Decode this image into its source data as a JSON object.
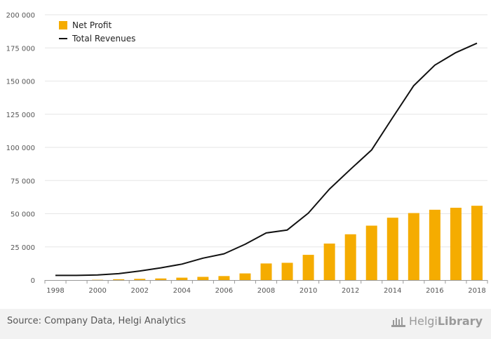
{
  "chart_data": {
    "type": "bar+line",
    "x": [
      1998,
      1999,
      2000,
      2001,
      2002,
      2003,
      2004,
      2005,
      2006,
      2007,
      2008,
      2009,
      2010,
      2011,
      2012,
      2013,
      2014,
      2015,
      2016,
      2017,
      2018
    ],
    "x_tick_labels": [
      "1998",
      "2000",
      "2002",
      "2004",
      "2006",
      "2008",
      "2010",
      "2012",
      "2014",
      "2016",
      "2018"
    ],
    "series": [
      {
        "name": "Net Profit",
        "kind": "bar",
        "color": "#f5ac00",
        "values": [
          0,
          0,
          200,
          600,
          900,
          1200,
          1800,
          2400,
          3000,
          5000,
          12500,
          13000,
          19000,
          27500,
          34500,
          41000,
          47000,
          50500,
          53000,
          54500,
          56000
        ]
      },
      {
        "name": "Total Revenues",
        "kind": "line",
        "color": "#111111",
        "values": [
          3500,
          3500,
          3800,
          4800,
          6800,
          9200,
          12000,
          16500,
          19800,
          27000,
          35500,
          37700,
          50500,
          68500,
          83500,
          98000,
          122500,
          146500,
          162000,
          171500,
          178500
        ]
      }
    ],
    "ylim": [
      0,
      200000
    ],
    "y_ticks": [
      0,
      25000,
      50000,
      75000,
      100000,
      125000,
      150000,
      175000,
      200000
    ],
    "y_tick_labels": [
      "0",
      "25 000",
      "50 000",
      "75 000",
      "100 000",
      "125 000",
      "150 000",
      "175 000",
      "200 000"
    ],
    "grid": true,
    "legend_position": "top-left"
  },
  "footer": {
    "source": "Source: Company Data, Helgi Analytics",
    "brand_part1": "Helgi",
    "brand_part2": "Library"
  }
}
